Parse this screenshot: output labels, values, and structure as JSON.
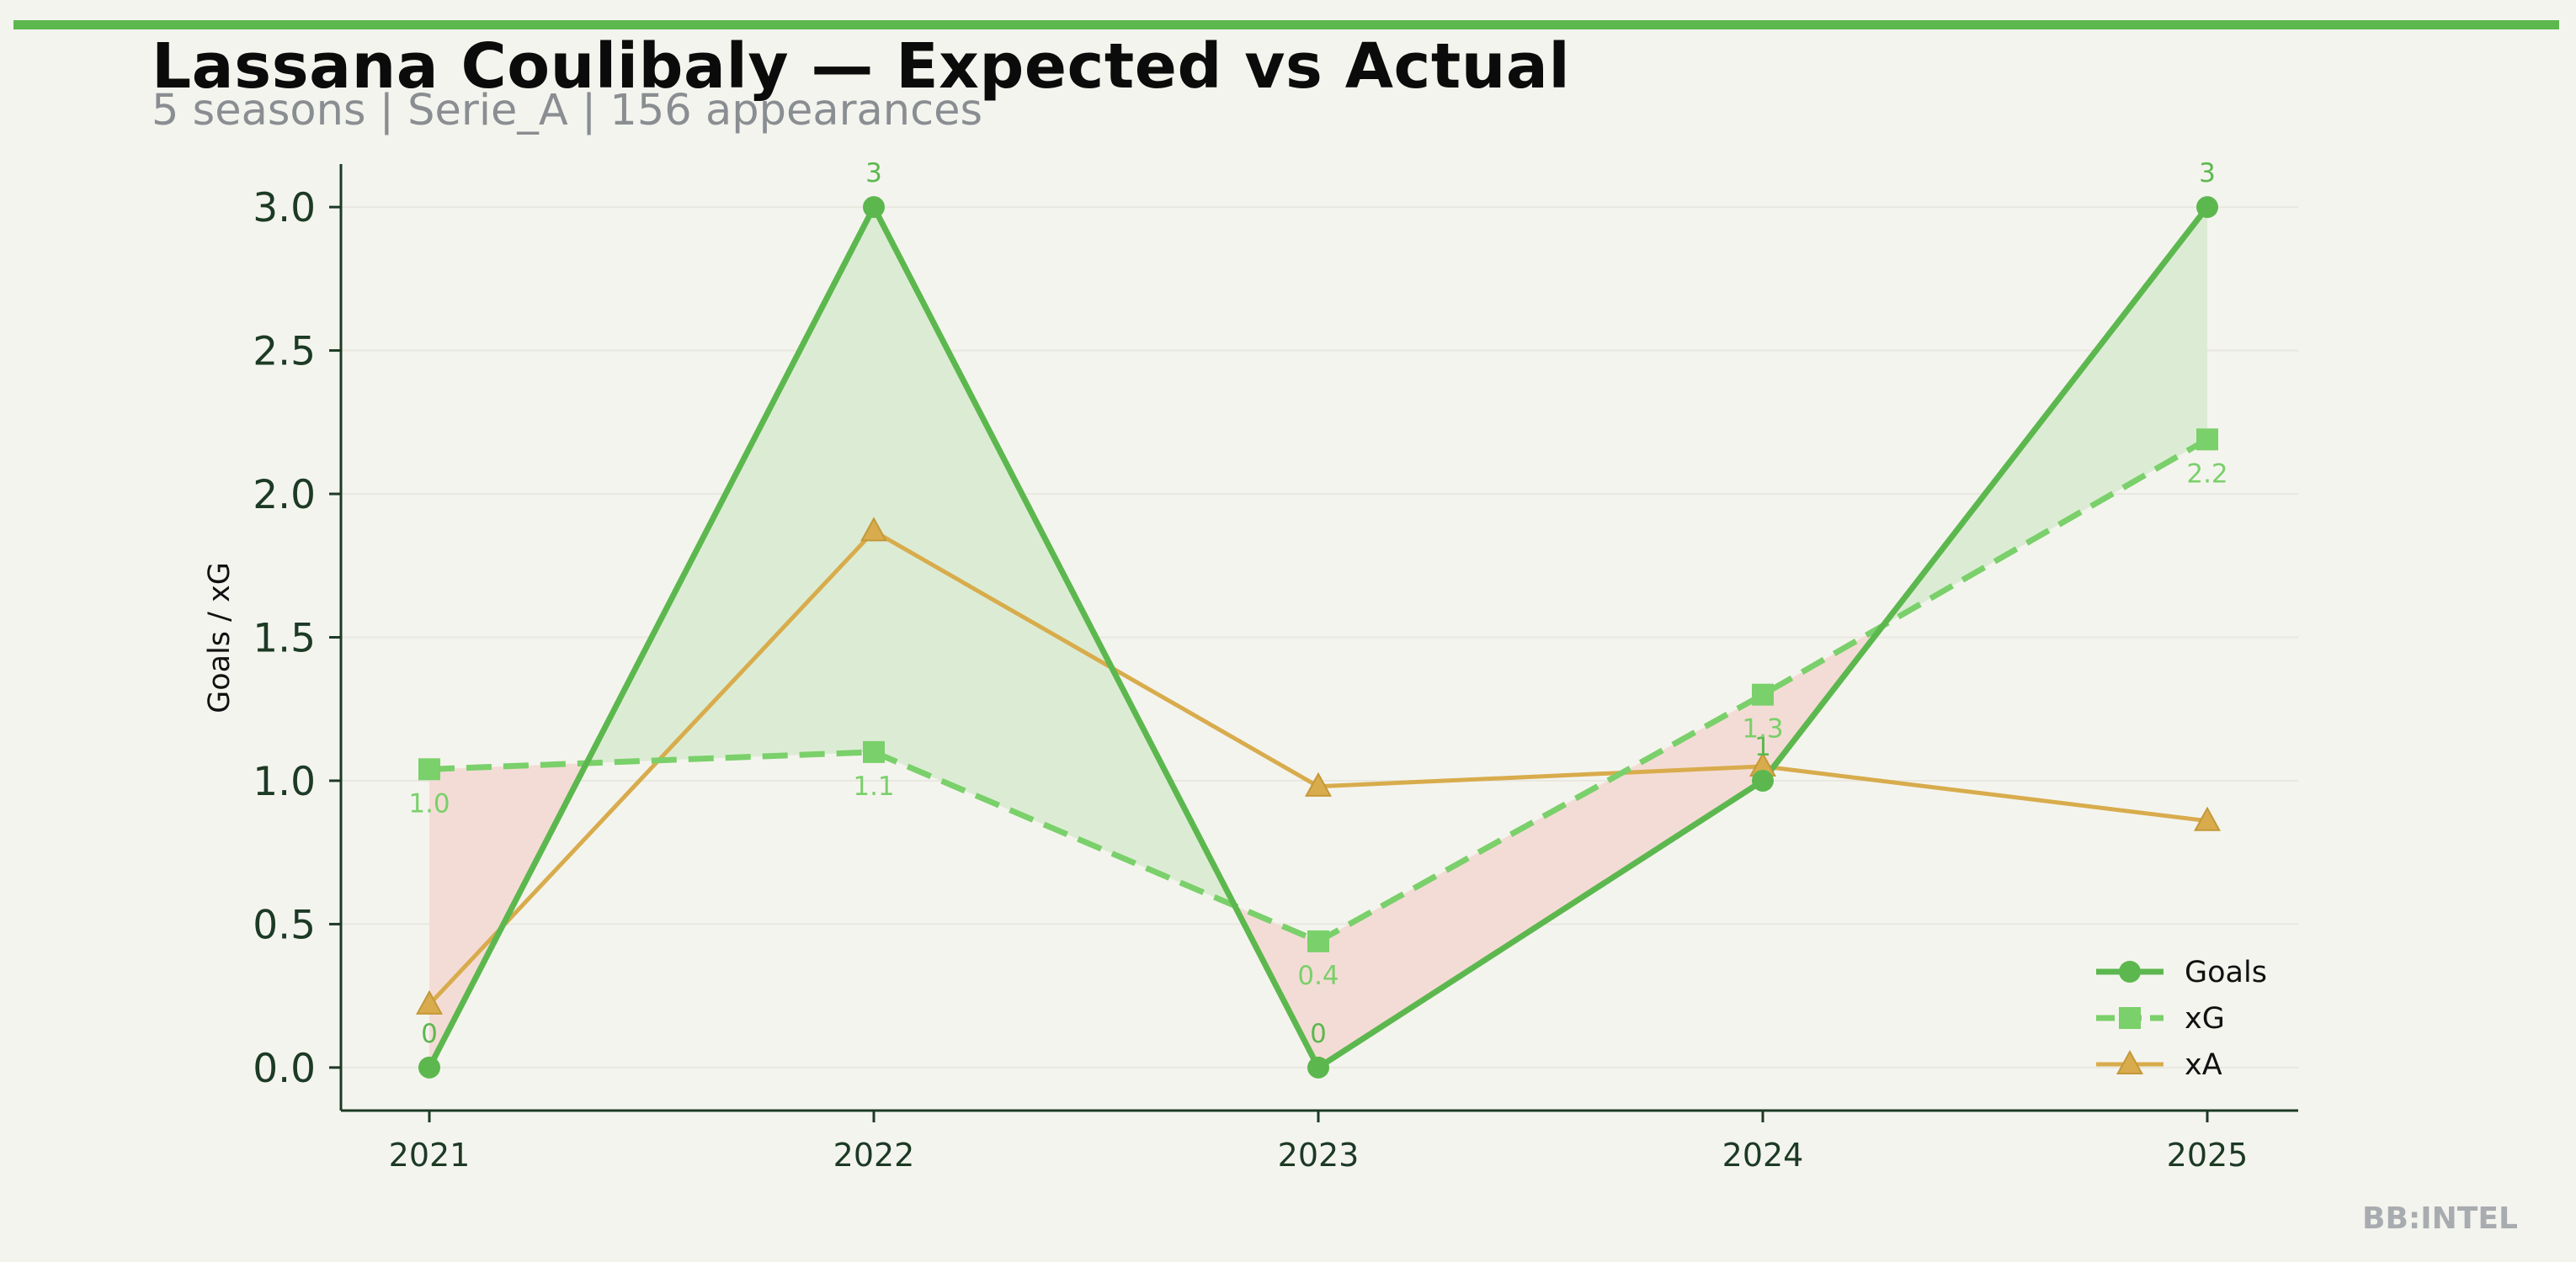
{
  "header": {
    "title": "Lassana Coulibaly — Expected vs Actual",
    "subtitle": "5 seasons | Serie_A | 156 appearances"
  },
  "watermark": "BB:INTEL",
  "colors": {
    "goals": "#5cb84e",
    "xg": "#7ad06a",
    "xa": "#d8ac4c",
    "overperform_fill": "#dcecd4",
    "underperform_fill": "#f4dcd6",
    "axis": "#1c3a24",
    "background": "#f4f4ee"
  },
  "chart_data": {
    "type": "line",
    "title": "Lassana Coulibaly — Expected vs Actual",
    "xlabel": "",
    "ylabel": "Goals / xG",
    "categories": [
      "2021",
      "2022",
      "2023",
      "2024",
      "2025"
    ],
    "ylim": [
      -0.15,
      3.15
    ],
    "yticks": [
      "0.0",
      "0.5",
      "1.0",
      "1.5",
      "2.0",
      "2.5",
      "3.0"
    ],
    "grid": true,
    "legend_position": "bottom-right",
    "series": [
      {
        "name": "Goals",
        "values": [
          0,
          3,
          0,
          1,
          3
        ],
        "labels": [
          "0",
          "3",
          "0",
          "1",
          "3"
        ],
        "marker": "circle",
        "line": "solid"
      },
      {
        "name": "xG",
        "values": [
          1.04,
          1.1,
          0.44,
          1.3,
          2.19
        ],
        "labels": [
          "1.0",
          "1.1",
          "0.4",
          "1.3",
          "2.2"
        ],
        "marker": "square",
        "line": "dashed"
      },
      {
        "name": "xA",
        "values": [
          0.22,
          1.87,
          0.98,
          1.05,
          0.86
        ],
        "marker": "triangle",
        "line": "solid"
      }
    ]
  }
}
